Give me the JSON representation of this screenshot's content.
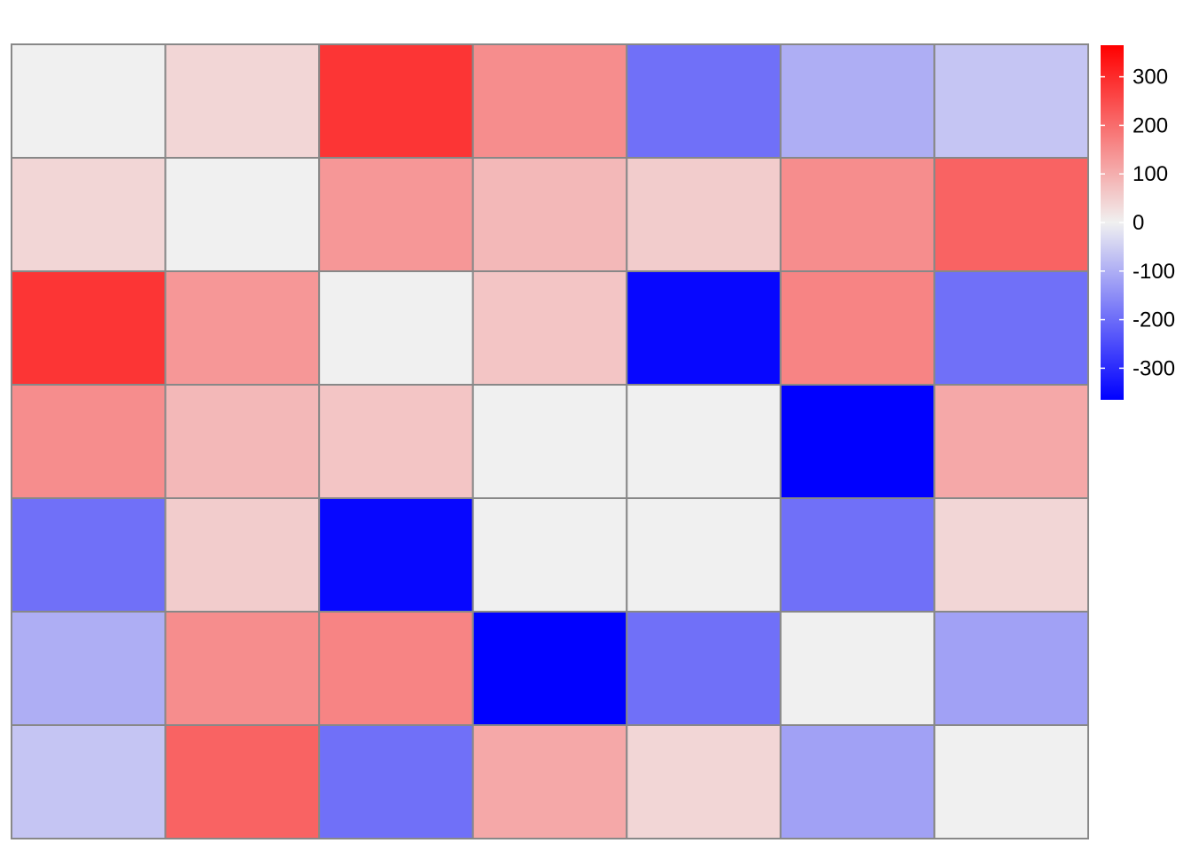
{
  "chart_data": {
    "type": "heatmap",
    "title": "",
    "xlabel": "",
    "ylabel": "",
    "rows": 7,
    "cols": 7,
    "values": [
      [
        0,
        40,
        285,
        150,
        -195,
        -100,
        -65
      ],
      [
        40,
        0,
        135,
        85,
        55,
        150,
        215
      ],
      [
        285,
        135,
        0,
        65,
        -355,
        165,
        -195
      ],
      [
        150,
        85,
        65,
        0,
        0,
        -365,
        110
      ],
      [
        -195,
        55,
        -355,
        0,
        0,
        -195,
        40
      ],
      [
        -100,
        150,
        165,
        -365,
        -195,
        0,
        -120
      ],
      [
        -65,
        215,
        -195,
        110,
        40,
        -120,
        0
      ]
    ],
    "color_scale": {
      "min": -365,
      "max": 365,
      "low_color": "#0000ff",
      "mid_color": "#f0f0f0",
      "high_color": "#ff0000",
      "cell_border_color": "#888888"
    },
    "legend": {
      "position": "right",
      "ticks": [
        300,
        200,
        100,
        0,
        -100,
        -200,
        -300
      ],
      "tick_labels": [
        "300",
        "200",
        "100",
        "0",
        "-100",
        "-200",
        "-300"
      ]
    }
  }
}
